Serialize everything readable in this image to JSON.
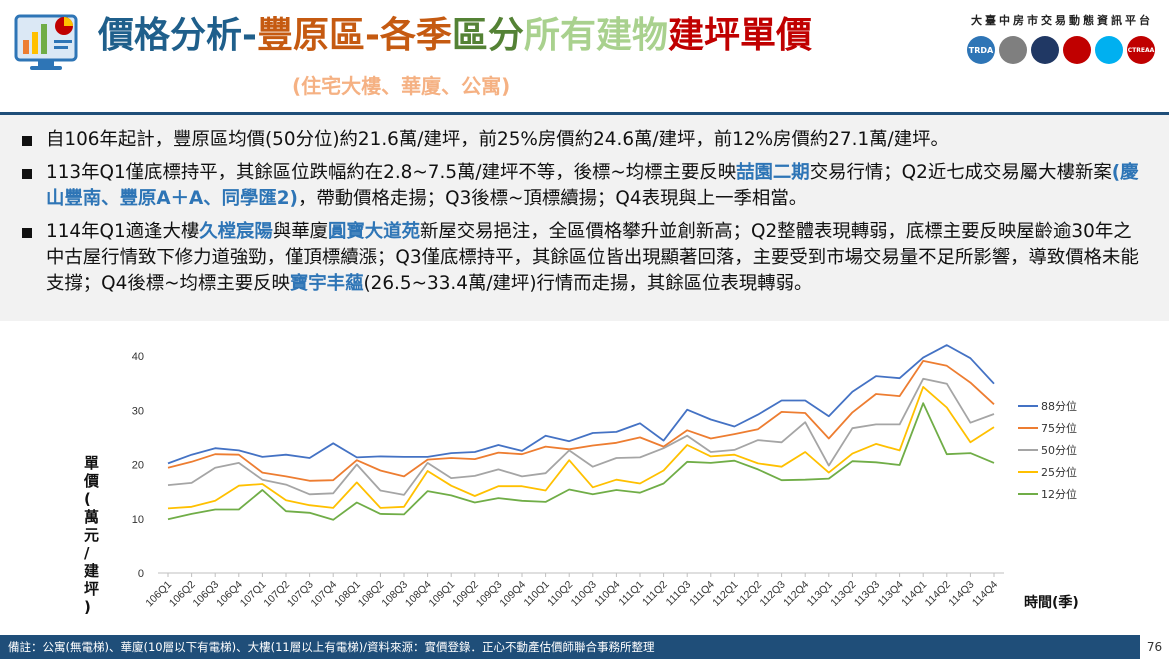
{
  "header": {
    "title_parts": [
      {
        "text": "價格分析-",
        "color": "#1f5f8b"
      },
      {
        "text": "豐原區-",
        "color": "#c55a11"
      },
      {
        "text": "各季",
        "color": "#c55a11"
      },
      {
        "text": "區分",
        "color": "#548235"
      },
      {
        "text": "所有建物",
        "color": "#a9d18e"
      },
      {
        "text": "建坪單價",
        "color": "#c00000"
      }
    ],
    "subtitle": "(住宅大樓、華廈、公寓)",
    "platform": "大臺中房市交易動態資訊平台",
    "badges": [
      {
        "label": "TRDA",
        "color": "#2e75b6"
      },
      {
        "label": "",
        "color": "#7f7f7f"
      },
      {
        "label": "",
        "color": "#203864"
      },
      {
        "label": "",
        "color": "#c00000"
      },
      {
        "label": "",
        "color": "#00b0f0"
      },
      {
        "label": "CTREAA",
        "color": "#c00000"
      }
    ]
  },
  "bullets": [
    {
      "segments": [
        {
          "t": "自106年起計，豐原區均價(50分位)約21.6萬/建坪，前25%房價約24.6萬/建坪，前12%房價約27.1萬/建坪。",
          "hl": false
        }
      ]
    },
    {
      "segments": [
        {
          "t": "113年Q1僅底標持平，其餘區位跌幅約在2.8~7.5萬/建坪不等，後標~均標主要反映",
          "hl": false
        },
        {
          "t": "喆園二期",
          "hl": true
        },
        {
          "t": "交易行情；Q2近七成交易屬大樓新案",
          "hl": false
        },
        {
          "t": "(慶山豐南、豐原A＋A、同學匯2)",
          "hl": true
        },
        {
          "t": "，帶動價格走揚；Q3後標~頂標續揚；Q4表現與上一季相當。",
          "hl": false
        }
      ]
    },
    {
      "segments": [
        {
          "t": "114年Q1適逢大樓",
          "hl": false
        },
        {
          "t": "久樘宸陽",
          "hl": true
        },
        {
          "t": "與華廈",
          "hl": false
        },
        {
          "t": "圓寶大道苑",
          "hl": true
        },
        {
          "t": "新屋交易挹注，全區價格攀升並創新高；Q2整體表現轉弱，底標主要反映屋齡逾30年之中古屋行情致下修力道強勁，僅頂標續漲；Q3僅底標持平，其餘區位皆出現顯著回落，主要受到市場交易量不足所影響，導致價格未能支撐；Q4後標~均標主要反映",
          "hl": false
        },
        {
          "t": "寶宇丰蘊",
          "hl": true
        },
        {
          "t": "(26.5~33.4萬/建坪)行情而走揚，其餘區位表現轉弱。",
          "hl": false
        }
      ]
    }
  ],
  "chart_data": {
    "type": "line",
    "ylabel": "單價(萬元/建坪)",
    "xlabel": "時間(季)",
    "ylim": [
      0,
      40
    ],
    "yticks": [
      0,
      10,
      20,
      30,
      40
    ],
    "grid": false,
    "legend": "right",
    "categories": [
      "106Q1",
      "106Q2",
      "106Q3",
      "106Q4",
      "107Q1",
      "107Q2",
      "107Q3",
      "107Q4",
      "108Q1",
      "108Q2",
      "108Q3",
      "108Q4",
      "109Q1",
      "109Q2",
      "109Q3",
      "109Q4",
      "110Q1",
      "110Q2",
      "110Q3",
      "110Q4",
      "111Q1",
      "111Q2",
      "111Q3",
      "111Q4",
      "112Q1",
      "112Q2",
      "112Q3",
      "112Q4",
      "113Q1",
      "113Q2",
      "113Q3",
      "113Q4",
      "114Q1",
      "114Q2",
      "114Q3",
      "114Q4"
    ],
    "series": [
      {
        "name": "88分位",
        "color": "#4472c4",
        "values": [
          20.2,
          21.8,
          23.0,
          22.6,
          21.4,
          21.8,
          21.2,
          23.9,
          21.3,
          21.5,
          21.4,
          21.4,
          22.1,
          22.3,
          23.6,
          22.5,
          25.3,
          24.3,
          25.8,
          26.0,
          27.6,
          24.4,
          30.1,
          28.3,
          27.0,
          29.2,
          31.8,
          31.8,
          28.9,
          33.4,
          36.3,
          35.9,
          39.7,
          42.0,
          39.6,
          34.9
        ]
      },
      {
        "name": "75分位",
        "color": "#ed7d31",
        "values": [
          19.4,
          20.5,
          21.9,
          21.8,
          18.5,
          17.8,
          17.0,
          17.1,
          20.8,
          18.9,
          17.8,
          20.9,
          21.2,
          21.0,
          22.2,
          21.9,
          23.3,
          22.8,
          23.5,
          24.0,
          25.0,
          23.3,
          26.3,
          24.8,
          25.6,
          26.5,
          29.7,
          29.5,
          24.8,
          29.6,
          33.0,
          32.6,
          39.1,
          38.2,
          35.1,
          31.1
        ]
      },
      {
        "name": "50分位",
        "color": "#a5a5a5",
        "values": [
          16.2,
          16.6,
          19.4,
          20.3,
          17.2,
          16.3,
          14.5,
          14.7,
          20.0,
          15.2,
          14.4,
          20.3,
          17.5,
          17.9,
          19.1,
          17.8,
          18.4,
          22.6,
          19.6,
          21.2,
          21.3,
          23.0,
          25.3,
          22.3,
          22.7,
          24.5,
          24.1,
          27.8,
          19.8,
          26.7,
          27.4,
          27.4,
          35.8,
          34.9,
          27.7,
          29.3
        ]
      },
      {
        "name": "25分位",
        "color": "#ffc000",
        "values": [
          11.9,
          12.2,
          13.3,
          16.1,
          16.4,
          13.4,
          12.5,
          12.0,
          16.7,
          12.0,
          12.2,
          18.8,
          16.1,
          14.2,
          16.0,
          16.0,
          15.2,
          20.8,
          15.8,
          17.2,
          16.5,
          18.9,
          23.6,
          21.5,
          21.8,
          20.2,
          19.6,
          22.3,
          18.5,
          22.0,
          23.8,
          22.6,
          34.3,
          30.5,
          24.1,
          26.9
        ]
      },
      {
        "name": "12分位",
        "color": "#70ad47",
        "values": [
          9.9,
          10.9,
          11.7,
          11.7,
          15.3,
          11.4,
          11.1,
          9.8,
          13.0,
          10.9,
          10.8,
          15.1,
          14.3,
          13.0,
          13.8,
          13.3,
          13.1,
          15.4,
          14.5,
          15.3,
          14.8,
          16.5,
          20.5,
          20.3,
          20.7,
          19.1,
          17.1,
          17.2,
          17.4,
          20.6,
          20.4,
          19.9,
          31.3,
          21.9,
          22.1,
          20.3
        ]
      }
    ]
  },
  "footer": {
    "note": "備註：公寓(無電梯)、華廈(10層以下有電梯)、大樓(11層以上有電梯)/資料來源：實價登錄．正心不動產估價師聯合事務所整理",
    "page": "76"
  }
}
